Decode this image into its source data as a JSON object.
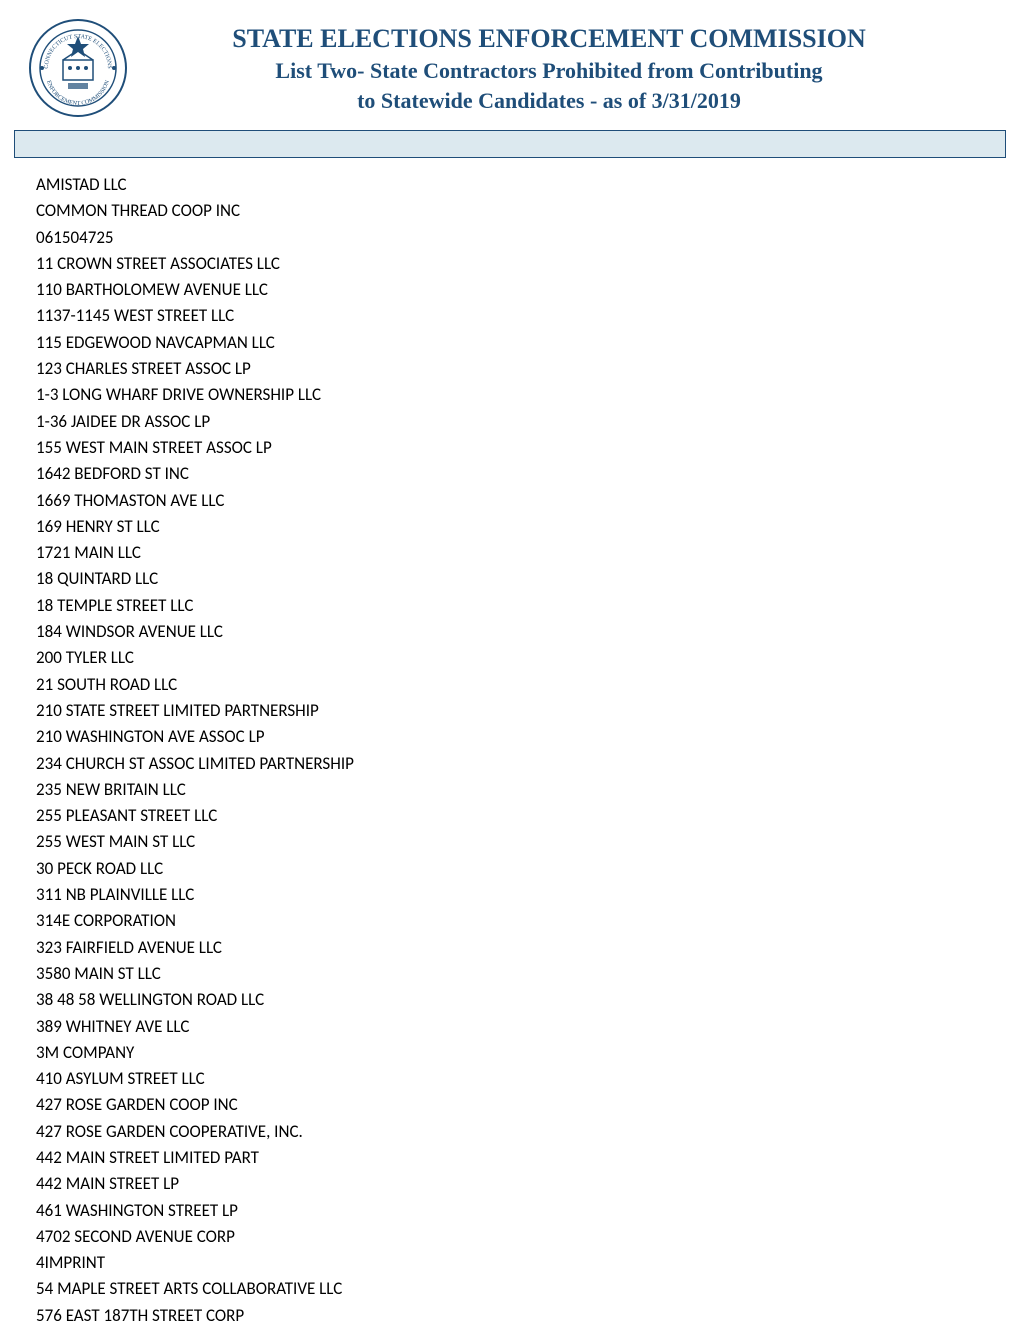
{
  "header": {
    "title_line1": "STATE ELECTIONS ENFORCEMENT COMMISSION",
    "title_line2": "List Two- State Contractors Prohibited from Contributing",
    "title_line3": "to Statewide Candidates - as of 3/31/2019"
  },
  "colors": {
    "title_color": "#1f4e79",
    "bar_background": "#dce9ef",
    "bar_border": "#1f4e79",
    "text_color": "#000000",
    "seal_color": "#1f4e79"
  },
  "list_items": [
    "AMISTAD LLC",
    " COMMON THREAD COOP INC",
    "061504725",
    "11 CROWN STREET ASSOCIATES LLC",
    "110 BARTHOLOMEW AVENUE LLC",
    "1137-1145 WEST STREET LLC",
    "115 EDGEWOOD NAVCAPMAN LLC",
    "123 CHARLES STREET ASSOC LP",
    "1-3 LONG WHARF DRIVE OWNERSHIP LLC",
    "1-36 JAIDEE DR ASSOC LP",
    "155 WEST MAIN STREET ASSOC LP",
    "1642 BEDFORD ST INC",
    "1669 THOMASTON AVE LLC",
    "169 HENRY ST LLC",
    "1721 MAIN LLC",
    "18 QUINTARD LLC",
    "18 TEMPLE STREET LLC",
    "184 WINDSOR AVENUE LLC",
    "200 TYLER LLC",
    "21 SOUTH ROAD LLC",
    "210 STATE STREET LIMITED PARTNERSHIP",
    "210 WASHINGTON AVE ASSOC LP",
    "234 CHURCH ST ASSOC LIMITED PARTNERSHIP",
    "235 NEW BRITAIN LLC",
    "255 PLEASANT STREET LLC",
    "255 WEST MAIN ST LLC",
    "30 PECK ROAD LLC",
    "311 NB PLAINVILLE LLC",
    "314E CORPORATION",
    "323 FAIRFIELD AVENUE LLC",
    "3580 MAIN ST LLC",
    "38 48 58 WELLINGTON ROAD LLC",
    "389 WHITNEY AVE LLC",
    "3M COMPANY",
    "410 ASYLUM STREET LLC",
    "427 ROSE GARDEN COOP INC",
    "427 ROSE GARDEN COOPERATIVE, INC.",
    "442 MAIN STREET LIMITED PART",
    "442 MAIN STREET LP",
    "461 WASHINGTON STREET LP",
    "4702 SECOND AVENUE CORP",
    "4IMPRINT",
    "54 MAPLE STREET ARTS COLLABORATIVE LLC",
    "576 EAST 187TH STREET CORP"
  ]
}
